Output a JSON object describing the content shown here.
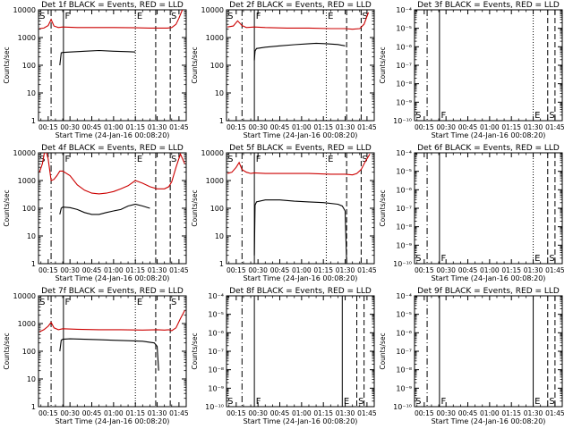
{
  "figure": {
    "xlabel": "Start Time (24-Jan-16 00:08:20)",
    "ylabel": "Counts/sec",
    "x_ticks": [
      "00:15",
      "00:30",
      "00:45",
      "01:00",
      "01:15",
      "01:30",
      "01:45"
    ],
    "x_tick_minutes": [
      15,
      30,
      45,
      60,
      75,
      90,
      105
    ],
    "x_range_minutes": [
      8.33,
      110
    ],
    "events_color": "#000000",
    "lld_color": "#cc0000"
  },
  "chart_data": [
    {
      "type": "line",
      "title": "Det 1f BLACK = Events, RED = LLD",
      "scale": "log",
      "ylim": [
        1,
        10000
      ],
      "y_ticks": [
        "1",
        "10",
        "100",
        "1000",
        "10000"
      ],
      "y_tick_values": [
        1,
        10,
        100,
        1000,
        10000
      ],
      "marker_lines": [
        {
          "t": 17,
          "style": "dashdot"
        },
        {
          "t": 25.5,
          "style": "solid"
        },
        {
          "t": 75,
          "style": "dotted"
        },
        {
          "t": 89,
          "style": "dashed"
        },
        {
          "t": 99,
          "style": "dashed"
        }
      ],
      "marker_labels": [
        {
          "t": 9,
          "text": "S",
          "row": "top"
        },
        {
          "t": 26.5,
          "text": "F",
          "row": "top"
        },
        {
          "t": 76,
          "text": "E",
          "row": "top"
        },
        {
          "t": 99.5,
          "text": "S",
          "row": "top"
        }
      ],
      "series": [
        {
          "name": "Events",
          "color_role": "events",
          "x": [
            23,
            24,
            25,
            30,
            40,
            50,
            60,
            70,
            75
          ],
          "y": [
            100,
            280,
            290,
            300,
            320,
            340,
            320,
            310,
            300
          ]
        },
        {
          "name": "LLD",
          "color_role": "lld",
          "x": [
            9,
            12,
            15,
            17,
            19,
            22,
            25,
            35,
            50,
            60,
            75,
            85,
            90,
            97,
            100,
            103,
            105,
            107,
            109
          ],
          "y": [
            2100,
            2200,
            2700,
            4500,
            2600,
            2300,
            2400,
            2300,
            2300,
            2300,
            2250,
            2200,
            2200,
            2200,
            2300,
            3000,
            5000,
            9000,
            14000
          ]
        }
      ]
    },
    {
      "type": "line",
      "title": "Det 2f BLACK = Events, RED = LLD",
      "scale": "log",
      "ylim": [
        1,
        10000
      ],
      "y_ticks": [
        "1",
        "10",
        "100",
        "1000",
        "10000"
      ],
      "y_tick_values": [
        1,
        10,
        100,
        1000,
        10000
      ],
      "marker_lines": [
        {
          "t": 19,
          "style": "dashdot"
        },
        {
          "t": 27.5,
          "style": "solid"
        },
        {
          "t": 77,
          "style": "dotted"
        },
        {
          "t": 91,
          "style": "dashed"
        },
        {
          "t": 101,
          "style": "dashed"
        }
      ],
      "marker_labels": [
        {
          "t": 9,
          "text": "S",
          "row": "top"
        },
        {
          "t": 28.5,
          "text": "F",
          "row": "top"
        },
        {
          "t": 78,
          "text": "E",
          "row": "top"
        },
        {
          "t": 101.5,
          "text": "S",
          "row": "top"
        }
      ],
      "series": [
        {
          "name": "Events",
          "color_role": "events",
          "x": [
            27.5,
            28,
            29,
            35,
            45,
            55,
            65,
            70,
            77,
            85,
            90
          ],
          "y": [
            150,
            330,
            400,
            450,
            500,
            550,
            600,
            620,
            600,
            560,
            500
          ]
        },
        {
          "name": "LLD",
          "color_role": "lld",
          "x": [
            9,
            13,
            16,
            19,
            22,
            27.5,
            35,
            50,
            65,
            80,
            90,
            95,
            100,
            103,
            106
          ],
          "y": [
            2400,
            2600,
            4000,
            2700,
            2300,
            2400,
            2300,
            2200,
            2200,
            2100,
            2100,
            2000,
            2100,
            3000,
            8000
          ]
        }
      ]
    },
    {
      "type": "line",
      "title": "Det 3f BLACK = Events, RED = LLD",
      "scale": "log",
      "ylim": [
        1e-10,
        0.0001
      ],
      "y_ticks": [
        "10⁻¹⁰",
        "10⁻⁹",
        "10⁻⁸",
        "10⁻⁷",
        "10⁻⁶",
        "10⁻⁵",
        "10⁻⁴"
      ],
      "y_tick_values": [
        1e-10,
        1e-09,
        1e-08,
        1e-07,
        1e-06,
        1e-05,
        0.0001
      ],
      "marker_lines": [
        {
          "t": 17,
          "style": "dashdot"
        },
        {
          "t": 25.5,
          "style": "solid"
        },
        {
          "t": 90,
          "style": "dotted"
        },
        {
          "t": 100,
          "style": "dashed"
        },
        {
          "t": 105,
          "style": "dashed"
        }
      ],
      "marker_labels": [
        {
          "t": 9,
          "text": "S",
          "row": "bottom"
        },
        {
          "t": 26.5,
          "text": "F",
          "row": "bottom"
        },
        {
          "t": 91,
          "text": "E",
          "row": "bottom"
        },
        {
          "t": 101,
          "text": "S",
          "row": "bottom"
        }
      ],
      "series": []
    },
    {
      "type": "line",
      "title": "Det 4f BLACK = Events, RED = LLD",
      "scale": "log",
      "ylim": [
        1,
        10000
      ],
      "y_ticks": [
        "1",
        "10",
        "100",
        "1000",
        "10000"
      ],
      "y_tick_values": [
        1,
        10,
        100,
        1000,
        10000
      ],
      "marker_lines": [
        {
          "t": 17,
          "style": "dashdot"
        },
        {
          "t": 25.5,
          "style": "solid"
        },
        {
          "t": 75,
          "style": "dotted"
        },
        {
          "t": 89,
          "style": "dashed"
        },
        {
          "t": 99,
          "style": "dashed"
        }
      ],
      "marker_labels": [
        {
          "t": 9,
          "text": "S",
          "row": "top"
        },
        {
          "t": 26.5,
          "text": "F",
          "row": "top"
        },
        {
          "t": 76,
          "text": "E",
          "row": "top"
        },
        {
          "t": 99.5,
          "text": "S",
          "row": "top"
        }
      ],
      "series": [
        {
          "name": "Events",
          "color_role": "events",
          "x": [
            23,
            24,
            25,
            30,
            35,
            40,
            45,
            50,
            55,
            60,
            65,
            70,
            75,
            80,
            85
          ],
          "y": [
            60,
            100,
            110,
            105,
            90,
            70,
            60,
            60,
            70,
            80,
            90,
            120,
            140,
            120,
            100
          ]
        },
        {
          "name": "LLD",
          "color_role": "lld",
          "x": [
            9,
            11,
            13,
            15,
            17,
            19,
            21,
            23,
            25,
            30,
            35,
            40,
            45,
            50,
            55,
            60,
            65,
            70,
            75,
            80,
            85,
            90,
            95,
            98,
            100,
            103,
            106,
            109
          ],
          "y": [
            2000,
            4000,
            15000,
            6000,
            1000,
            1100,
            1500,
            2200,
            2200,
            1500,
            700,
            450,
            350,
            330,
            350,
            400,
            500,
            650,
            1000,
            800,
            600,
            500,
            500,
            600,
            900,
            3000,
            9000,
            4000
          ]
        }
      ]
    },
    {
      "type": "line",
      "title": "Det 5f BLACK = Events, RED = LLD",
      "scale": "log",
      "ylim": [
        1,
        10000
      ],
      "y_ticks": [
        "1",
        "10",
        "100",
        "1000",
        "10000"
      ],
      "y_tick_values": [
        1,
        10,
        100,
        1000,
        10000
      ],
      "marker_lines": [
        {
          "t": 19,
          "style": "dashdot"
        },
        {
          "t": 27.5,
          "style": "solid"
        },
        {
          "t": 77,
          "style": "dotted"
        },
        {
          "t": 91,
          "style": "dashed"
        },
        {
          "t": 101,
          "style": "dashed"
        }
      ],
      "marker_labels": [
        {
          "t": 9,
          "text": "S",
          "row": "top"
        },
        {
          "t": 28.5,
          "text": "F",
          "row": "top"
        },
        {
          "t": 78,
          "text": "E",
          "row": "top"
        },
        {
          "t": 101.5,
          "text": "S",
          "row": "top"
        }
      ],
      "series": [
        {
          "name": "Events",
          "color_role": "events",
          "x": [
            27.5,
            28,
            29,
            35,
            45,
            55,
            65,
            75,
            85,
            88,
            90,
            91
          ],
          "y": [
            2,
            130,
            170,
            200,
            200,
            180,
            170,
            160,
            140,
            120,
            80,
            1
          ]
        },
        {
          "name": "LLD",
          "color_role": "lld",
          "x": [
            9,
            12,
            15,
            17,
            19,
            22,
            25,
            27.5,
            35,
            50,
            65,
            80,
            90,
            95,
            98,
            101,
            104,
            107
          ],
          "y": [
            1800,
            2000,
            3000,
            4500,
            2500,
            2000,
            1800,
            1900,
            1800,
            1800,
            1800,
            1700,
            1700,
            1600,
            1800,
            2500,
            5000,
            9000
          ]
        }
      ]
    },
    {
      "type": "line",
      "title": "Det 6f BLACK = Events, RED = LLD",
      "scale": "log",
      "ylim": [
        1e-10,
        0.0001
      ],
      "y_ticks": [
        "10⁻¹⁰",
        "10⁻⁹",
        "10⁻⁸",
        "10⁻⁷",
        "10⁻⁶",
        "10⁻⁵",
        "10⁻⁴"
      ],
      "y_tick_values": [
        1e-10,
        1e-09,
        1e-08,
        1e-07,
        1e-06,
        1e-05,
        0.0001
      ],
      "marker_lines": [
        {
          "t": 17,
          "style": "dashdot"
        },
        {
          "t": 25.5,
          "style": "solid"
        },
        {
          "t": 90,
          "style": "dotted"
        },
        {
          "t": 100,
          "style": "dashed"
        },
        {
          "t": 105,
          "style": "dashed"
        }
      ],
      "marker_labels": [
        {
          "t": 9,
          "text": "S",
          "row": "bottom"
        },
        {
          "t": 26.5,
          "text": "F",
          "row": "bottom"
        },
        {
          "t": 91,
          "text": "E",
          "row": "bottom"
        },
        {
          "t": 101,
          "text": "S",
          "row": "bottom"
        }
      ],
      "series": []
    },
    {
      "type": "line",
      "title": "Det 7f BLACK = Events, RED = LLD",
      "scale": "log",
      "ylim": [
        1,
        10000
      ],
      "y_ticks": [
        "1",
        "10",
        "100",
        "1000",
        "10000"
      ],
      "y_tick_values": [
        1,
        10,
        100,
        1000,
        10000
      ],
      "marker_lines": [
        {
          "t": 17,
          "style": "dashdot"
        },
        {
          "t": 25.5,
          "style": "solid"
        },
        {
          "t": 75,
          "style": "dotted"
        },
        {
          "t": 89,
          "style": "dashed"
        },
        {
          "t": 99,
          "style": "dashed"
        }
      ],
      "marker_labels": [
        {
          "t": 9,
          "text": "S",
          "row": "top"
        },
        {
          "t": 26.5,
          "text": "F",
          "row": "top"
        },
        {
          "t": 76,
          "text": "E",
          "row": "top"
        },
        {
          "t": 99.5,
          "text": "S",
          "row": "top"
        }
      ],
      "series": [
        {
          "name": "Events",
          "color_role": "events",
          "x": [
            23,
            24,
            25,
            30,
            40,
            50,
            60,
            70,
            80,
            88,
            90,
            91
          ],
          "y": [
            100,
            250,
            270,
            280,
            270,
            260,
            250,
            240,
            230,
            200,
            150,
            20
          ]
        },
        {
          "name": "LLD",
          "color_role": "lld",
          "x": [
            9,
            12,
            15,
            17,
            19,
            22,
            25,
            35,
            50,
            65,
            80,
            90,
            95,
            98,
            100,
            103,
            106,
            109
          ],
          "y": [
            500,
            600,
            800,
            1100,
            700,
            600,
            650,
            620,
            600,
            600,
            580,
            600,
            580,
            600,
            550,
            700,
            1500,
            3000
          ]
        }
      ]
    },
    {
      "type": "line",
      "title": "Det 8f BLACK = Events, RED = LLD",
      "scale": "log",
      "ylim": [
        1e-10,
        0.0001
      ],
      "y_ticks": [
        "10⁻¹⁰",
        "10⁻⁹",
        "10⁻⁸",
        "10⁻⁷",
        "10⁻⁶",
        "10⁻⁵",
        "10⁻⁴"
      ],
      "y_tick_values": [
        1e-10,
        1e-09,
        1e-08,
        1e-07,
        1e-06,
        1e-05,
        0.0001
      ],
      "marker_lines": [
        {
          "t": 19,
          "style": "dashdot"
        },
        {
          "t": 27.5,
          "style": "solid"
        },
        {
          "t": 88,
          "style": "solid"
        },
        {
          "t": 98,
          "style": "dashed"
        },
        {
          "t": 103,
          "style": "dashed"
        }
      ],
      "marker_labels": [
        {
          "t": 9,
          "text": "S",
          "row": "bottom"
        },
        {
          "t": 28.5,
          "text": "F",
          "row": "bottom"
        },
        {
          "t": 89,
          "text": "E",
          "row": "bottom"
        },
        {
          "t": 99,
          "text": "S",
          "row": "bottom"
        }
      ],
      "series": []
    },
    {
      "type": "line",
      "title": "Det 9f BLACK = Events, RED = LLD",
      "scale": "log",
      "ylim": [
        1e-10,
        0.0001
      ],
      "y_ticks": [
        "10⁻¹⁰",
        "10⁻⁹",
        "10⁻⁸",
        "10⁻⁷",
        "10⁻⁶",
        "10⁻⁵",
        "10⁻⁴"
      ],
      "y_tick_values": [
        1e-10,
        1e-09,
        1e-08,
        1e-07,
        1e-06,
        1e-05,
        0.0001
      ],
      "marker_lines": [
        {
          "t": 17,
          "style": "dashdot"
        },
        {
          "t": 25.5,
          "style": "solid"
        },
        {
          "t": 90,
          "style": "solid"
        },
        {
          "t": 100,
          "style": "dashed"
        },
        {
          "t": 105,
          "style": "dashed"
        }
      ],
      "marker_labels": [
        {
          "t": 9,
          "text": "S",
          "row": "bottom"
        },
        {
          "t": 26.5,
          "text": "F",
          "row": "bottom"
        },
        {
          "t": 91,
          "text": "E",
          "row": "bottom"
        },
        {
          "t": 101,
          "text": "S",
          "row": "bottom"
        }
      ],
      "series": []
    }
  ]
}
